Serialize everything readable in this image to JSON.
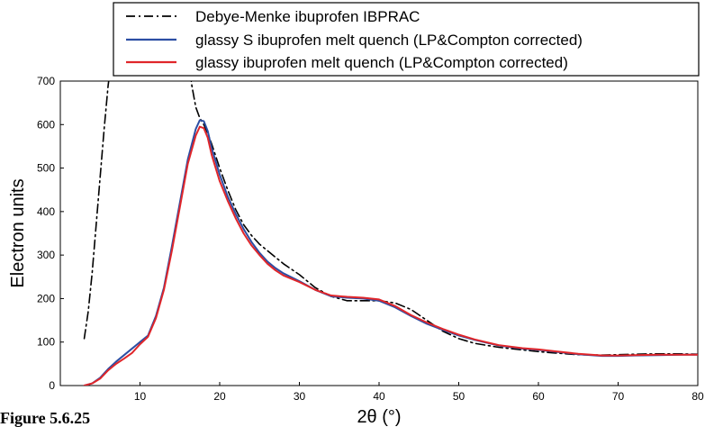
{
  "caption": "Figure 5.6.25",
  "chart_data": {
    "type": "line",
    "title": "",
    "xlabel": "2θ (°)",
    "ylabel": "Electron units",
    "xlim": [
      0,
      80
    ],
    "ylim": [
      0,
      700
    ],
    "x_ticks": [
      10,
      20,
      30,
      40,
      50,
      60,
      70,
      80
    ],
    "y_ticks": [
      0,
      100,
      200,
      300,
      400,
      500,
      600,
      700
    ],
    "grid": false,
    "legend_position": "top",
    "series": [
      {
        "name": "Debye-Menke ibuprofen IBPRAC",
        "style": "dash-dot",
        "color": "#000000",
        "x": [
          3,
          3.5,
          4,
          4.5,
          5,
          5.5,
          6,
          6.5,
          16,
          16.5,
          17,
          17.5,
          18,
          18.5,
          19,
          20,
          21,
          22,
          23,
          24,
          25,
          26,
          27,
          28,
          30,
          32,
          34,
          36,
          38,
          40,
          42,
          44,
          46,
          48,
          50,
          52,
          55,
          58,
          60,
          62,
          65,
          68,
          70,
          72,
          75,
          78,
          80
        ],
        "y": [
          108,
          170,
          260,
          370,
          480,
          590,
          690,
          760,
          760,
          690,
          640,
          615,
          600,
          580,
          555,
          500,
          450,
          405,
          370,
          345,
          325,
          310,
          295,
          280,
          255,
          225,
          205,
          195,
          195,
          195,
          190,
          175,
          150,
          125,
          108,
          97,
          88,
          82,
          78,
          75,
          71,
          70,
          71,
          72,
          73,
          73,
          72
        ]
      },
      {
        "name": "glassy S ibuprofen melt quench (LP&Compton corrected)",
        "style": "solid",
        "color": "#2c4ea3",
        "x": [
          3,
          4,
          5,
          6,
          7,
          8,
          9,
          10,
          11,
          12,
          13,
          14,
          15,
          16,
          17,
          17.5,
          18,
          18.5,
          19,
          20,
          21,
          22,
          23,
          24,
          25,
          26,
          27,
          28,
          30,
          32,
          34,
          36,
          38,
          40,
          42,
          44,
          46,
          48,
          50,
          52,
          55,
          58,
          60,
          62,
          65,
          68,
          70,
          72,
          75,
          78,
          80
        ],
        "y": [
          0,
          5,
          18,
          38,
          55,
          70,
          85,
          100,
          115,
          160,
          225,
          320,
          420,
          520,
          590,
          610,
          608,
          585,
          545,
          485,
          435,
          395,
          360,
          330,
          305,
          285,
          270,
          258,
          240,
          220,
          205,
          202,
          200,
          195,
          180,
          160,
          142,
          128,
          115,
          105,
          92,
          85,
          82,
          78,
          72,
          68,
          68,
          69,
          70,
          71,
          71
        ]
      },
      {
        "name": "glassy ibuprofen melt quench (LP&Compton corrected)",
        "style": "solid",
        "color": "#e0262a",
        "x": [
          3,
          4,
          5,
          6,
          7,
          8,
          9,
          10,
          11,
          12,
          13,
          14,
          15,
          16,
          17,
          17.5,
          18,
          18.5,
          19,
          20,
          21,
          22,
          23,
          24,
          25,
          26,
          27,
          28,
          30,
          32,
          34,
          36,
          38,
          40,
          42,
          44,
          46,
          48,
          50,
          52,
          55,
          58,
          60,
          62,
          65,
          68,
          70,
          72,
          75,
          78,
          80
        ],
        "y": [
          0,
          5,
          16,
          35,
          50,
          62,
          75,
          95,
          112,
          155,
          220,
          310,
          410,
          510,
          575,
          595,
          592,
          570,
          530,
          470,
          425,
          385,
          350,
          322,
          300,
          280,
          265,
          253,
          238,
          220,
          207,
          204,
          202,
          198,
          183,
          162,
          145,
          130,
          117,
          106,
          93,
          86,
          83,
          79,
          73,
          69,
          69,
          70,
          71,
          71,
          71
        ]
      }
    ]
  }
}
